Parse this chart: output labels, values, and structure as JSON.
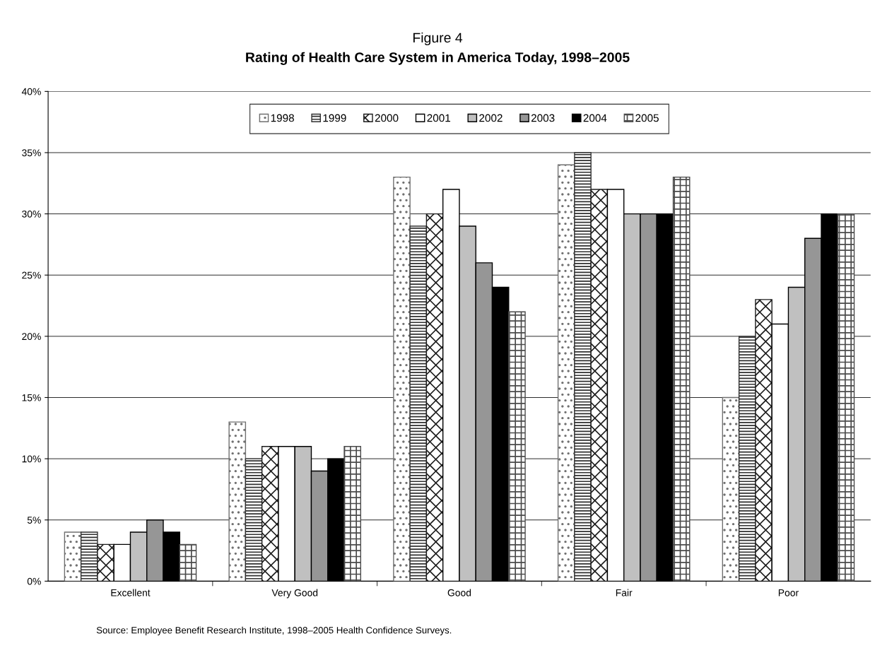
{
  "chart_data": {
    "type": "bar",
    "title": "Figure 4",
    "subtitle": "Rating of Health Care System in America Today, 1998–2005",
    "categories": [
      "Excellent",
      "Very Good",
      "Good",
      "Fair",
      "Poor"
    ],
    "series": [
      {
        "name": "1998",
        "color": "#707070",
        "values": [
          4,
          13,
          33,
          34,
          15
        ]
      },
      {
        "name": "1999",
        "color": "#303030",
        "values": [
          4,
          10,
          29,
          35,
          20
        ]
      },
      {
        "name": "2000",
        "color": "#1c1c1c",
        "values": [
          3,
          11,
          30,
          32,
          23
        ]
      },
      {
        "name": "2001",
        "color": "#ffffff",
        "values": [
          3,
          11,
          32,
          32,
          21
        ]
      },
      {
        "name": "2002",
        "color": "#c0c0c0",
        "values": [
          4,
          11,
          29,
          30,
          24
        ]
      },
      {
        "name": "2003",
        "color": "#969696",
        "values": [
          5,
          9,
          26,
          30,
          28
        ]
      },
      {
        "name": "2004",
        "color": "#000000",
        "values": [
          4,
          10,
          24,
          30,
          30
        ]
      },
      {
        "name": "2005",
        "color": "#4a4a4a",
        "values": [
          3,
          11,
          22,
          33,
          30
        ]
      }
    ],
    "ylim": [
      0,
      40
    ],
    "yticks": [
      {
        "value": 0,
        "label": "0%"
      },
      {
        "value": 5,
        "label": "5%"
      },
      {
        "value": 10,
        "label": "10%"
      },
      {
        "value": 15,
        "label": "15%"
      },
      {
        "value": 20,
        "label": "20%"
      },
      {
        "value": 25,
        "label": "25%"
      },
      {
        "value": 30,
        "label": "30%"
      },
      {
        "value": 35,
        "label": "35%"
      },
      {
        "value": 40,
        "label": "40%"
      }
    ],
    "grid": "y",
    "legend": "top",
    "annotations": [
      "Source: Employee Benefit Research Institute, 1998–2005 Health Confidence Surveys."
    ]
  }
}
